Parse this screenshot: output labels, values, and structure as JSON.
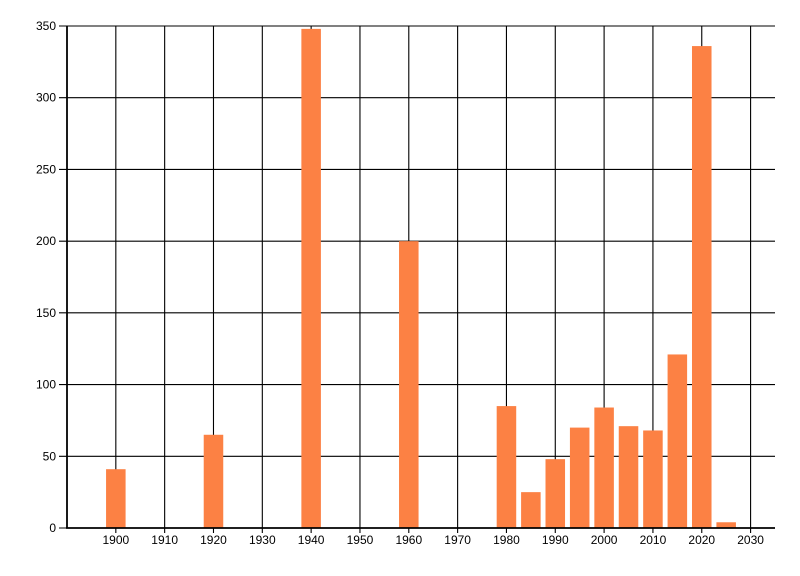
{
  "chart_data": {
    "type": "bar",
    "title": "",
    "xlabel": "",
    "ylabel": "",
    "x": [
      1900,
      1920,
      1940,
      1960,
      1980,
      1985,
      1990,
      1995,
      2000,
      2005,
      2010,
      2015,
      2020,
      2025
    ],
    "values": [
      41,
      65,
      348,
      200,
      85,
      25,
      48,
      70,
      84,
      71,
      68,
      121,
      336,
      4
    ],
    "bar_color": "#FC8144",
    "bar_width_years": 4,
    "xlim": [
      1890,
      2035
    ],
    "ylim": [
      0,
      350
    ],
    "x_ticks": [
      1900,
      1910,
      1920,
      1930,
      1940,
      1950,
      1960,
      1970,
      1980,
      1990,
      2000,
      2010,
      2020,
      2030
    ],
    "y_ticks": [
      0,
      50,
      100,
      150,
      200,
      250,
      300,
      350
    ],
    "grid": true,
    "grid_color": "#000000",
    "axis_color": "#000000",
    "label_color": "#000000",
    "background_color": "#FFFFFF",
    "legend": "none"
  }
}
